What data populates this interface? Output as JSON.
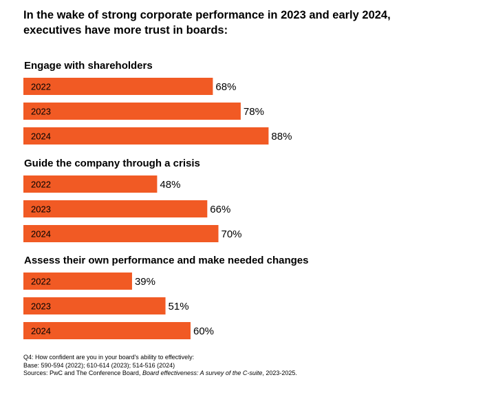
{
  "title_line1": "In the wake of strong corporate performance in 2023 and early 2024,",
  "title_line2": "executives have more trust in boards:",
  "colors": {
    "bar": "#f15a24",
    "text": "#000000"
  },
  "chart_data": {
    "type": "bar",
    "orientation": "horizontal",
    "value_suffix": "%",
    "xlim": [
      0,
      100
    ],
    "series_names": [
      "2022",
      "2023",
      "2024"
    ],
    "groups": [
      {
        "title": "Engage with shareholders",
        "bars": [
          {
            "year": "2022",
            "value": 68
          },
          {
            "year": "2023",
            "value": 78
          },
          {
            "year": "2024",
            "value": 88
          }
        ]
      },
      {
        "title": "Guide the company through a crisis",
        "bars": [
          {
            "year": "2022",
            "value": 48
          },
          {
            "year": "2023",
            "value": 66
          },
          {
            "year": "2024",
            "value": 70
          }
        ]
      },
      {
        "title": "Assess their own performance and make needed changes",
        "bars": [
          {
            "year": "2022",
            "value": 39
          },
          {
            "year": "2023",
            "value": 51
          },
          {
            "year": "2024",
            "value": 60
          }
        ]
      }
    ]
  },
  "footnotes": {
    "question": "Q4: How confident are you in your board's ability to effectively:",
    "base": "Base:  590-594 (2022); 610-614 (2023); 514-516 (2024)",
    "sources_prefix": "Sources: PwC and The Conference Board, ",
    "sources_title": "Board effectiveness: A survey of the C-suite",
    "sources_suffix": ", 2023-2025."
  }
}
